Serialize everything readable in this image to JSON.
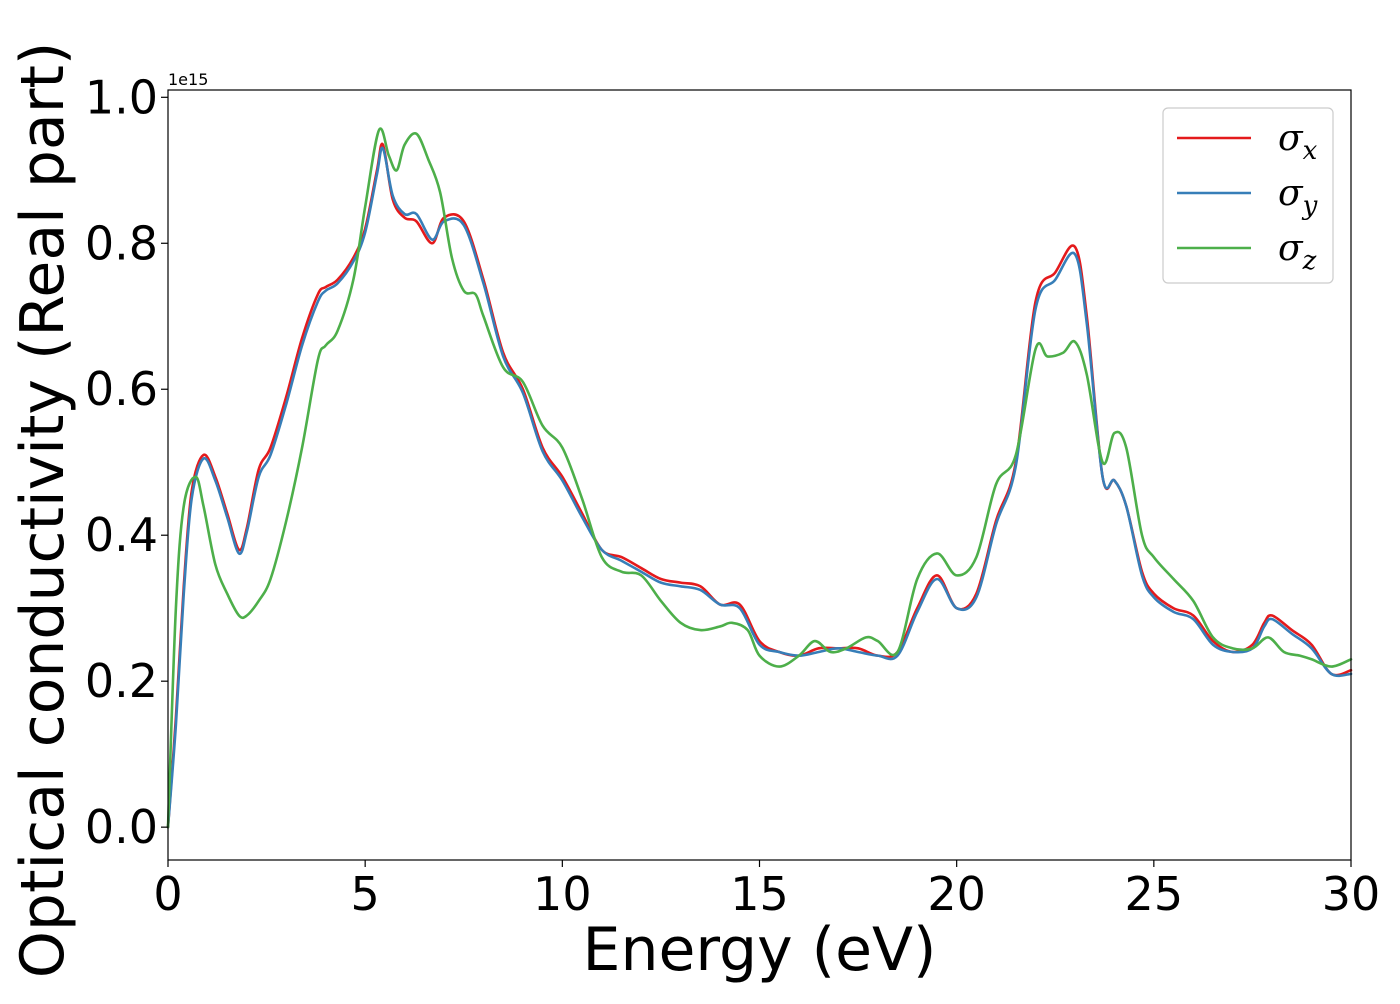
{
  "chart_data": {
    "type": "line",
    "xlabel": "Energy (eV)",
    "ylabel": "Optical conductivity (Real part)",
    "y_offset_label": "1e15",
    "y_scale_factor": 1000000000000000.0,
    "xlim": [
      0,
      30
    ],
    "ylim": [
      -0.045,
      1.01
    ],
    "xticks": [
      0,
      5,
      10,
      15,
      20,
      25,
      30
    ],
    "xtick_labels": [
      "0",
      "5",
      "10",
      "15",
      "20",
      "25",
      "30"
    ],
    "yticks": [
      0.0,
      0.2,
      0.4,
      0.6,
      0.8,
      1.0
    ],
    "ytick_labels": [
      "0.0",
      "0.2",
      "0.4",
      "0.6",
      "0.8",
      "1.0"
    ],
    "grid": false,
    "legend_position": "top-right",
    "series": [
      {
        "name": "σx",
        "name_main": "σ",
        "name_sub": "x",
        "color": "#e41a1c",
        "x": [
          0,
          0.2,
          0.4,
          0.6,
          0.9,
          1.2,
          1.5,
          1.8,
          2.0,
          2.3,
          2.6,
          3.0,
          3.4,
          3.8,
          4.0,
          4.3,
          4.7,
          5.0,
          5.3,
          5.45,
          5.7,
          6.0,
          6.3,
          6.7,
          7.0,
          7.5,
          8.0,
          8.5,
          9.0,
          9.5,
          10.0,
          10.5,
          11.0,
          11.5,
          12.0,
          12.5,
          13.0,
          13.5,
          14.0,
          14.5,
          15.0,
          15.5,
          16.0,
          16.5,
          17.0,
          17.5,
          18.0,
          18.5,
          19.0,
          19.5,
          20.0,
          20.5,
          21.0,
          21.5,
          22.0,
          22.5,
          23.0,
          23.3,
          23.7,
          24.0,
          24.3,
          24.7,
          25.0,
          25.5,
          26.0,
          26.5,
          27.0,
          27.5,
          27.8,
          28.0,
          28.5,
          29.0,
          29.5,
          30.0
        ],
        "y": [
          0.0,
          0.15,
          0.33,
          0.46,
          0.51,
          0.48,
          0.43,
          0.38,
          0.41,
          0.49,
          0.52,
          0.59,
          0.67,
          0.73,
          0.74,
          0.75,
          0.78,
          0.82,
          0.9,
          0.935,
          0.86,
          0.835,
          0.83,
          0.8,
          0.835,
          0.83,
          0.75,
          0.65,
          0.6,
          0.52,
          0.48,
          0.43,
          0.38,
          0.37,
          0.355,
          0.34,
          0.335,
          0.33,
          0.305,
          0.305,
          0.255,
          0.24,
          0.235,
          0.245,
          0.245,
          0.245,
          0.235,
          0.24,
          0.3,
          0.345,
          0.3,
          0.32,
          0.42,
          0.5,
          0.72,
          0.76,
          0.795,
          0.7,
          0.48,
          0.475,
          0.44,
          0.35,
          0.32,
          0.3,
          0.29,
          0.255,
          0.24,
          0.25,
          0.28,
          0.29,
          0.27,
          0.25,
          0.21,
          0.215
        ]
      },
      {
        "name": "σy",
        "name_main": "σ",
        "name_sub": "y",
        "color": "#377eb8",
        "x": [
          0,
          0.2,
          0.4,
          0.6,
          0.9,
          1.2,
          1.5,
          1.8,
          2.0,
          2.3,
          2.6,
          3.0,
          3.4,
          3.8,
          4.0,
          4.3,
          4.7,
          5.0,
          5.3,
          5.45,
          5.7,
          6.0,
          6.3,
          6.7,
          7.0,
          7.5,
          8.0,
          8.5,
          9.0,
          9.5,
          10.0,
          10.5,
          11.0,
          11.5,
          12.0,
          12.5,
          13.0,
          13.5,
          14.0,
          14.5,
          15.0,
          15.5,
          16.0,
          16.5,
          17.0,
          17.5,
          18.0,
          18.5,
          19.0,
          19.5,
          20.0,
          20.5,
          21.0,
          21.5,
          22.0,
          22.5,
          23.0,
          23.3,
          23.7,
          24.0,
          24.3,
          24.7,
          25.0,
          25.5,
          26.0,
          26.5,
          27.0,
          27.5,
          27.8,
          28.0,
          28.5,
          29.0,
          29.5,
          30.0
        ],
        "y": [
          0.0,
          0.14,
          0.32,
          0.45,
          0.505,
          0.475,
          0.425,
          0.375,
          0.405,
          0.48,
          0.51,
          0.58,
          0.66,
          0.72,
          0.735,
          0.745,
          0.775,
          0.815,
          0.895,
          0.93,
          0.865,
          0.84,
          0.84,
          0.805,
          0.83,
          0.825,
          0.745,
          0.645,
          0.595,
          0.515,
          0.475,
          0.425,
          0.38,
          0.365,
          0.35,
          0.335,
          0.33,
          0.325,
          0.305,
          0.3,
          0.25,
          0.24,
          0.235,
          0.24,
          0.245,
          0.24,
          0.235,
          0.235,
          0.295,
          0.34,
          0.3,
          0.315,
          0.415,
          0.495,
          0.71,
          0.75,
          0.785,
          0.69,
          0.48,
          0.475,
          0.44,
          0.345,
          0.315,
          0.295,
          0.285,
          0.25,
          0.24,
          0.245,
          0.275,
          0.285,
          0.265,
          0.245,
          0.21,
          0.21
        ]
      },
      {
        "name": "σz",
        "name_main": "σ",
        "name_sub": "z",
        "color": "#4daf4a",
        "x": [
          0,
          0.2,
          0.4,
          0.7,
          0.9,
          1.2,
          1.5,
          1.8,
          2.0,
          2.3,
          2.6,
          3.0,
          3.4,
          3.8,
          4.0,
          4.3,
          4.7,
          5.0,
          5.35,
          5.6,
          5.8,
          6.0,
          6.3,
          6.6,
          6.9,
          7.2,
          7.5,
          7.8,
          8.0,
          8.5,
          9.0,
          9.5,
          10.0,
          10.5,
          11.0,
          11.5,
          12.0,
          12.5,
          13.0,
          13.5,
          14.0,
          14.3,
          14.7,
          15.0,
          15.5,
          16.0,
          16.4,
          16.8,
          17.2,
          17.7,
          18.0,
          18.5,
          19.0,
          19.5,
          20.0,
          20.5,
          21.0,
          21.5,
          22.0,
          22.3,
          22.7,
          23.0,
          23.3,
          23.7,
          24.0,
          24.3,
          24.7,
          25.0,
          25.5,
          26.0,
          26.5,
          27.0,
          27.5,
          27.9,
          28.3,
          28.7,
          29.0,
          29.5,
          30.0
        ],
        "y": [
          0.0,
          0.3,
          0.44,
          0.48,
          0.44,
          0.36,
          0.32,
          0.29,
          0.29,
          0.31,
          0.34,
          0.42,
          0.52,
          0.64,
          0.66,
          0.68,
          0.75,
          0.85,
          0.955,
          0.92,
          0.9,
          0.935,
          0.95,
          0.915,
          0.87,
          0.78,
          0.735,
          0.73,
          0.7,
          0.63,
          0.61,
          0.55,
          0.52,
          0.45,
          0.37,
          0.35,
          0.345,
          0.31,
          0.28,
          0.27,
          0.275,
          0.28,
          0.27,
          0.235,
          0.22,
          0.235,
          0.255,
          0.24,
          0.245,
          0.26,
          0.255,
          0.24,
          0.34,
          0.375,
          0.345,
          0.37,
          0.47,
          0.51,
          0.655,
          0.645,
          0.65,
          0.665,
          0.62,
          0.5,
          0.54,
          0.52,
          0.4,
          0.37,
          0.34,
          0.31,
          0.26,
          0.245,
          0.245,
          0.26,
          0.24,
          0.235,
          0.23,
          0.22,
          0.23
        ]
      }
    ]
  }
}
